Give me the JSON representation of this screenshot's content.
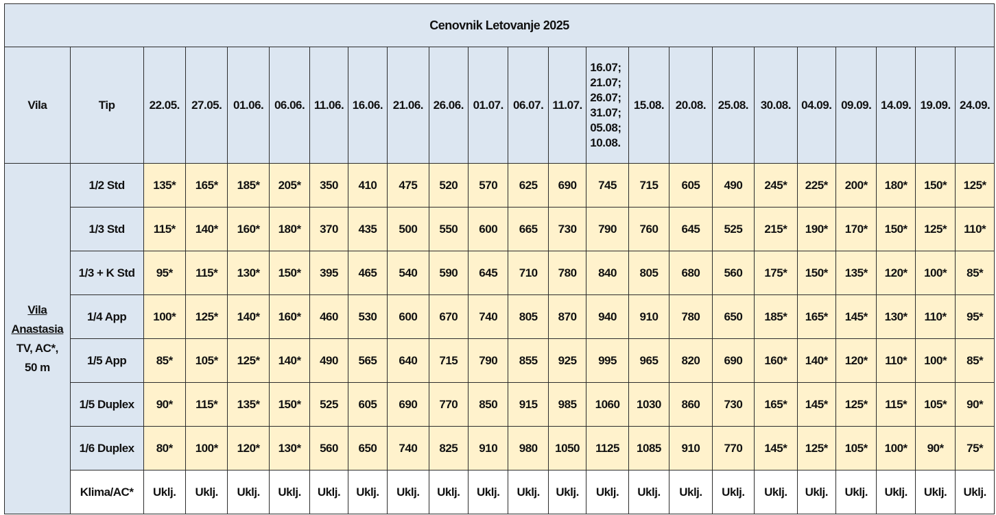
{
  "title": "Cenovnik Letovanje 2025",
  "header": {
    "vila": "Vila",
    "tip": "Tip",
    "dates": [
      [
        "22.05."
      ],
      [
        "27.05."
      ],
      [
        "01.06."
      ],
      [
        "06.06."
      ],
      [
        "11.06."
      ],
      [
        "16.06."
      ],
      [
        "21.06."
      ],
      [
        "26.06."
      ],
      [
        "01.07."
      ],
      [
        "06.07."
      ],
      [
        "11.07."
      ],
      [
        "16.07;",
        "21.07;",
        "26.07;",
        "31.07;",
        "05.08;",
        "10.08."
      ],
      [
        "15.08."
      ],
      [
        "20.08."
      ],
      [
        "25.08."
      ],
      [
        "30.08."
      ],
      [
        "04.09."
      ],
      [
        "09.09."
      ],
      [
        "14.09."
      ],
      [
        "19.09."
      ],
      [
        "24.09."
      ]
    ]
  },
  "vila": {
    "name_line1": "Vila",
    "name_line2": "Anastasia",
    "line3": "TV, AC*,",
    "line4": "50 m"
  },
  "rows": [
    {
      "tip": "1/2 Std",
      "prices": [
        "135*",
        "165*",
        "185*",
        "205*",
        "350",
        "410",
        "475",
        "520",
        "570",
        "625",
        "690",
        "745",
        "715",
        "605",
        "490",
        "245*",
        "225*",
        "200*",
        "180*",
        "150*",
        "125*"
      ]
    },
    {
      "tip": "1/3 Std",
      "prices": [
        "115*",
        "140*",
        "160*",
        "180*",
        "370",
        "435",
        "500",
        "550",
        "600",
        "665",
        "730",
        "790",
        "760",
        "645",
        "525",
        "215*",
        "190*",
        "170*",
        "150*",
        "125*",
        "110*"
      ]
    },
    {
      "tip": "1/3 + K Std",
      "prices": [
        "95*",
        "115*",
        "130*",
        "150*",
        "395",
        "465",
        "540",
        "590",
        "645",
        "710",
        "780",
        "840",
        "805",
        "680",
        "560",
        "175*",
        "150*",
        "135*",
        "120*",
        "100*",
        "85*"
      ]
    },
    {
      "tip": "1/4 App",
      "prices": [
        "100*",
        "125*",
        "140*",
        "160*",
        "460",
        "530",
        "600",
        "670",
        "740",
        "805",
        "870",
        "940",
        "910",
        "780",
        "650",
        "185*",
        "165*",
        "145*",
        "130*",
        "110*",
        "95*"
      ]
    },
    {
      "tip": "1/5 App",
      "prices": [
        "85*",
        "105*",
        "125*",
        "140*",
        "490",
        "565",
        "640",
        "715",
        "790",
        "855",
        "925",
        "995",
        "965",
        "820",
        "690",
        "160*",
        "140*",
        "120*",
        "110*",
        "100*",
        "85*"
      ]
    },
    {
      "tip": "1/5  Duplex",
      "prices": [
        "90*",
        "115*",
        "135*",
        "150*",
        "525",
        "605",
        "690",
        "770",
        "850",
        "915",
        "985",
        "1060",
        "1030",
        "860",
        "730",
        "165*",
        "145*",
        "125*",
        "115*",
        "105*",
        "90*"
      ]
    },
    {
      "tip": "1/6 Duplex",
      "prices": [
        "80*",
        "100*",
        "120*",
        "130*",
        "560",
        "650",
        "740",
        "825",
        "910",
        "980",
        "1050",
        "1125",
        "1085",
        "910",
        "770",
        "145*",
        "125*",
        "105*",
        "100*",
        "90*",
        "75*"
      ]
    }
  ],
  "ac_row": {
    "tip": "Klima/AC*",
    "value": "Uklj."
  }
}
